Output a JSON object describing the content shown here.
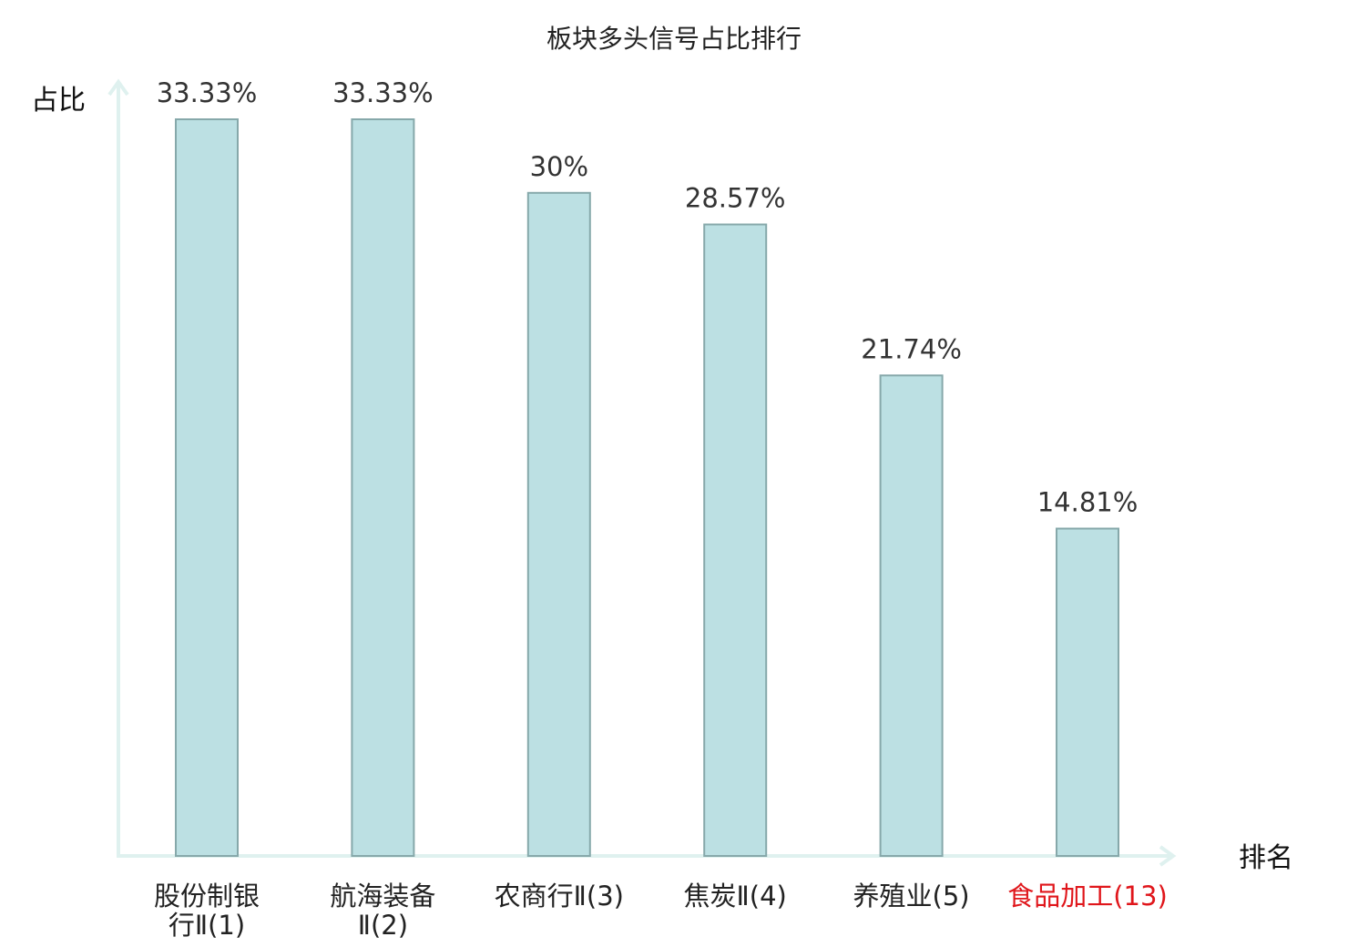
{
  "chart_data": {
    "type": "bar",
    "title": "板块多头信号占比排行",
    "xlabel": "排名",
    "ylabel": "占比",
    "categories": [
      {
        "lines": [
          "股份制银",
          "行Ⅱ(1)"
        ],
        "highlight": false
      },
      {
        "lines": [
          "航海装备",
          "Ⅱ(2)"
        ],
        "highlight": false
      },
      {
        "lines": [
          "农商行Ⅱ(3)"
        ],
        "highlight": false
      },
      {
        "lines": [
          "焦炭Ⅱ(4)"
        ],
        "highlight": false
      },
      {
        "lines": [
          "养殖业(5)"
        ],
        "highlight": false
      },
      {
        "lines": [
          "食品加工(13)"
        ],
        "highlight": true
      }
    ],
    "values": [
      33.33,
      33.33,
      30,
      28.57,
      21.74,
      14.81
    ],
    "value_labels": [
      "33.33%",
      "33.33%",
      "30%",
      "28.57%",
      "21.74%",
      "14.81%"
    ],
    "ylim": [
      0,
      33.33
    ],
    "grid": false,
    "legend": "none"
  },
  "colors": {
    "bar_fill": "#bce0e3",
    "bar_stroke": "#86a8aa",
    "axis": "#dff1ef",
    "label_normal": "#222222",
    "label_highlight": "#e0161b",
    "value_label": "#333333"
  }
}
